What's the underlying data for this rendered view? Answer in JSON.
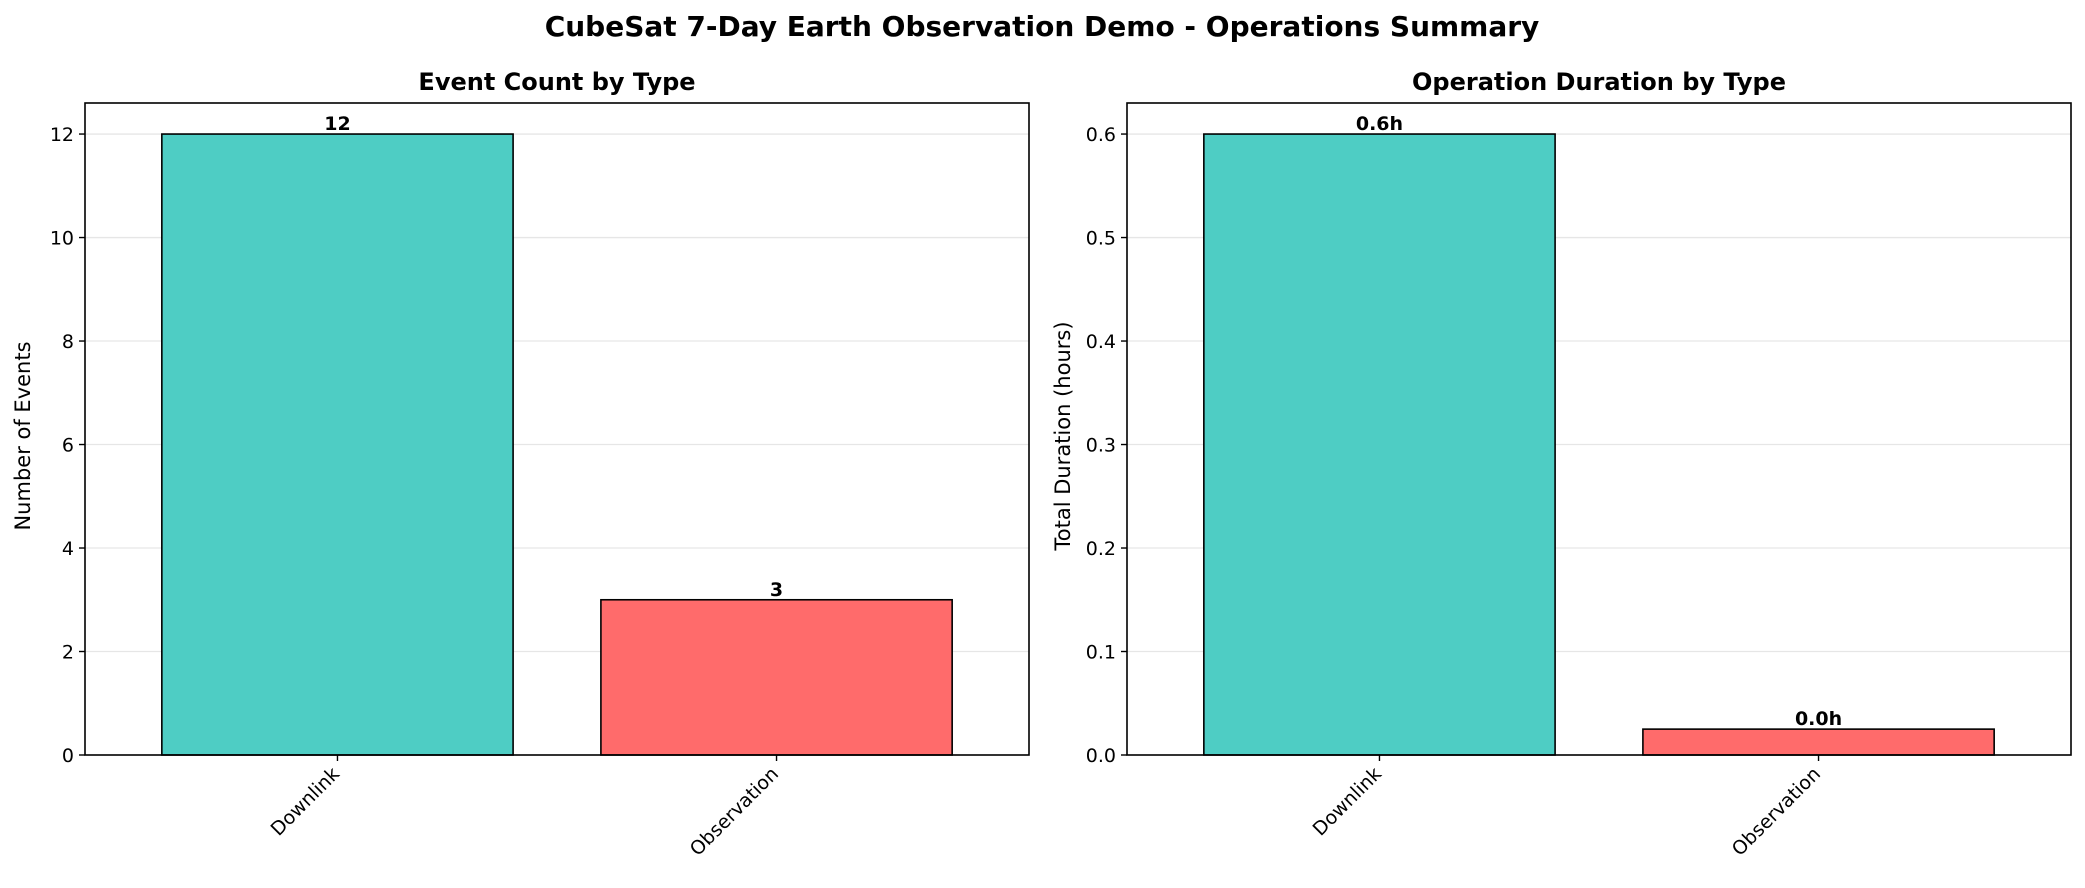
{
  "figure": {
    "title": "CubeSat 7-Day Earth Observation Demo - Operations Summary"
  },
  "colors": {
    "downlink": "#4ECDC4",
    "observation": "#FF6B6B",
    "edge": "#000000",
    "grid": "#e6e6e6"
  },
  "chart_data": [
    {
      "type": "bar",
      "title": "Event Count by Type",
      "xlabel": "",
      "ylabel": "Number of Events",
      "categories": [
        "Downlink",
        "Observation"
      ],
      "values": [
        12,
        3
      ],
      "data_labels": [
        "12",
        "3"
      ],
      "ylim": [
        0,
        12.6
      ],
      "yticks": [
        0,
        2,
        4,
        6,
        8,
        10,
        12
      ],
      "ytick_labels": [
        "0",
        "2",
        "4",
        "6",
        "8",
        "10",
        "12"
      ],
      "grid": "y",
      "legend": "none"
    },
    {
      "type": "bar",
      "title": "Operation Duration by Type",
      "xlabel": "",
      "ylabel": "Total Duration (hours)",
      "categories": [
        "Downlink",
        "Observation"
      ],
      "values": [
        0.6,
        0.025
      ],
      "data_labels": [
        "0.6h",
        "0.0h"
      ],
      "ylim": [
        0,
        0.63
      ],
      "yticks": [
        0.0,
        0.1,
        0.2,
        0.3,
        0.4,
        0.5,
        0.6
      ],
      "ytick_labels": [
        "0.0",
        "0.1",
        "0.2",
        "0.3",
        "0.4",
        "0.5",
        "0.6"
      ],
      "grid": "y",
      "legend": "none"
    }
  ]
}
